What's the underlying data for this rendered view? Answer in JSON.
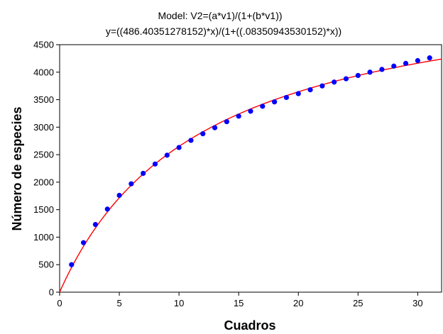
{
  "chart_data": {
    "type": "scatter",
    "title_lines": [
      "Model: V2=(a*v1)/(1+(b*v1))",
      "y=((486.40351278152)*x)/(1+((.08350943530152)*x))"
    ],
    "xlabel": "Cuadros",
    "ylabel": "Número de especies",
    "xlim": [
      0,
      32
    ],
    "ylim": [
      0,
      4500
    ],
    "x_ticks": [
      0,
      5,
      10,
      15,
      20,
      25,
      30
    ],
    "y_ticks": [
      0,
      500,
      1000,
      1500,
      2000,
      2500,
      3000,
      3500,
      4000,
      4500
    ],
    "grid": false,
    "legend": "none",
    "series": [
      {
        "type": "scatter",
        "color": "#0000ff",
        "x": [
          1,
          2,
          3,
          4,
          5,
          6,
          7,
          8,
          9,
          10,
          11,
          12,
          13,
          14,
          15,
          16,
          17,
          18,
          19,
          20,
          21,
          22,
          23,
          24,
          25,
          26,
          27,
          28,
          29,
          30,
          31
        ],
        "y": [
          500,
          900,
          1230,
          1510,
          1760,
          1970,
          2160,
          2330,
          2490,
          2630,
          2760,
          2880,
          2990,
          3100,
          3200,
          3290,
          3380,
          3460,
          3540,
          3610,
          3680,
          3750,
          3820,
          3880,
          3940,
          4000,
          4050,
          4110,
          4160,
          4210,
          4260
        ]
      },
      {
        "type": "line",
        "color": "#ff0000",
        "model": {
          "a": 486.40351278152,
          "b": 0.08350943530152
        }
      }
    ]
  }
}
